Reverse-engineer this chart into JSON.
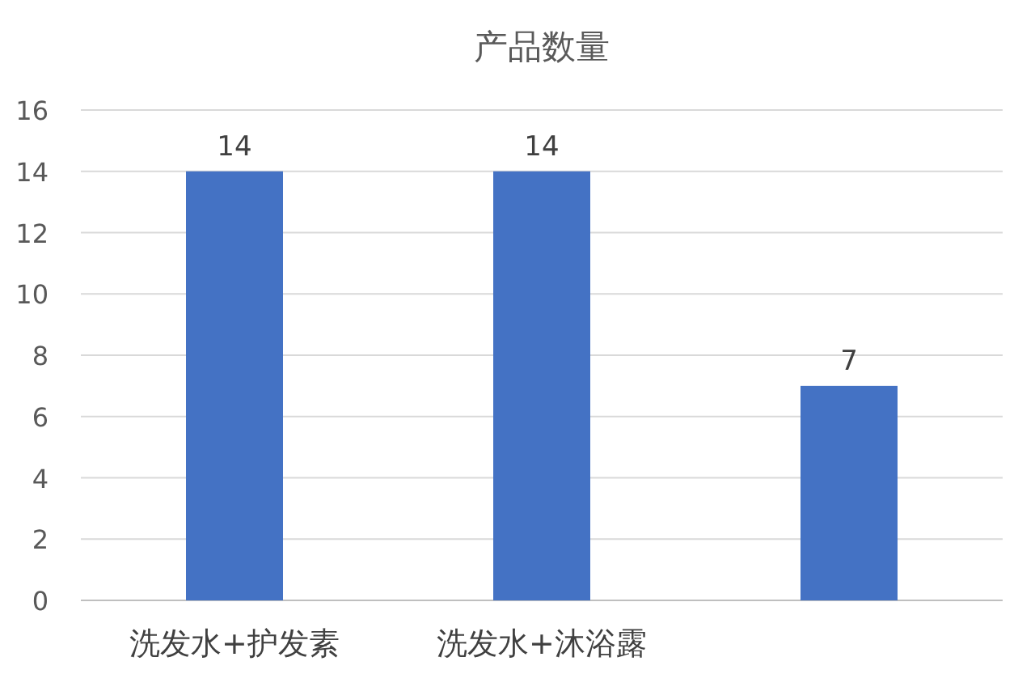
{
  "chart_data": {
    "type": "bar",
    "title": "产品数量",
    "categories": [
      "洗发水+护发素",
      "洗发水+沐浴露",
      null
    ],
    "values": [
      14,
      14,
      7
    ],
    "color": "#4472c4",
    "ylim": [
      0,
      16
    ],
    "yticks": [
      0,
      2,
      4,
      6,
      8,
      10,
      12,
      14,
      16
    ],
    "grid": "y",
    "data_labels": true
  }
}
